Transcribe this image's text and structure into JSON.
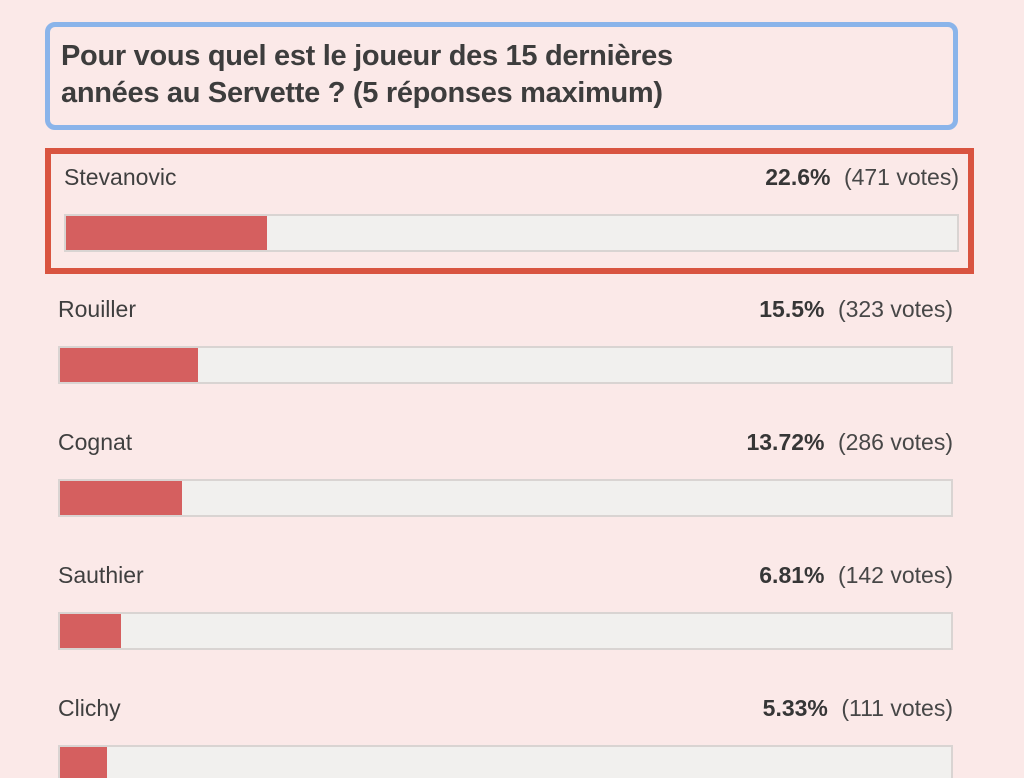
{
  "page": {
    "background_color": "#fbe9e8"
  },
  "question": {
    "line1": "Pour vous quel est le joueur des 15 dernières",
    "line2": "années au Servette ? (5 réponses maximum)",
    "border_color": "#8ab4ea"
  },
  "options": [
    {
      "label": "Stevanovic",
      "percent": "22.6%",
      "votes": "(471 votes)",
      "highlighted": true
    },
    {
      "label": "Rouiller",
      "percent": "15.5%",
      "votes": "(323 votes)",
      "highlighted": false
    },
    {
      "label": "Cognat",
      "percent": "13.72%",
      "votes": "(286 votes)",
      "highlighted": false
    },
    {
      "label": "Sauthier",
      "percent": "6.81%",
      "votes": "(142 votes)",
      "highlighted": false
    },
    {
      "label": "Clichy",
      "percent": "5.33%",
      "votes": "(111 votes)",
      "highlighted": false
    }
  ],
  "chart_data": {
    "type": "bar",
    "orientation": "horizontal",
    "title": "Pour vous quel est le joueur des 15 dernières années au Servette ? (5 réponses maximum)",
    "categories": [
      "Stevanovic",
      "Rouiller",
      "Cognat",
      "Sauthier",
      "Clichy"
    ],
    "values": [
      22.6,
      15.5,
      13.72,
      6.81,
      5.33
    ],
    "votes": [
      471,
      323,
      286,
      142,
      111
    ],
    "value_unit": "%",
    "xlim": [
      0,
      100
    ],
    "grid": false,
    "legend": false,
    "bar_color": "#d55f5f",
    "track_color": "#f1f0ee",
    "highlight_border_color": "#d95440"
  }
}
